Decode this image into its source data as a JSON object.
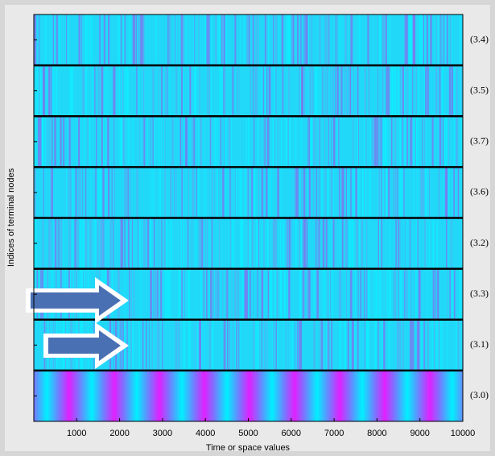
{
  "chart_data": {
    "type": "heatmap",
    "x_label": "Time or space values",
    "y_label": "Indices of terminal nodes",
    "categories": [
      "(3.4)",
      "(3.5)",
      "(3.7)",
      "(3.6)",
      "(3.2)",
      "(3.3)",
      "(3.1)",
      "(3.0)"
    ],
    "xlim": [
      0,
      10000
    ],
    "xticks": [
      1000,
      2000,
      3000,
      4000,
      5000,
      6000,
      7000,
      8000,
      9000,
      10000
    ]
  }
}
